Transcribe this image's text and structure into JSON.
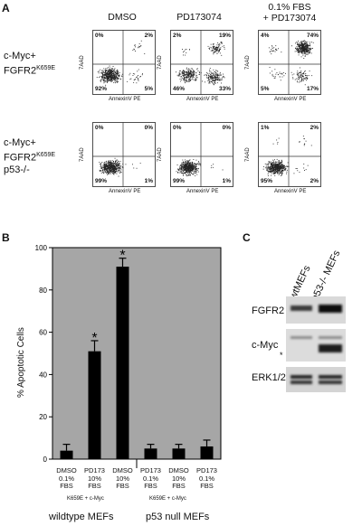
{
  "panels": {
    "a": "A",
    "b": "B",
    "c": "C"
  },
  "panel_a": {
    "columns": [
      "DMSO",
      "PD173074",
      "0.1% FBS",
      "+ PD173074"
    ],
    "rows": [
      {
        "label_line1": "c-Myc+",
        "label_line2": "FGFR2",
        "label_sup": "K659E",
        "label_line3": ""
      },
      {
        "label_line1": "c-Myc+",
        "label_line2": "FGFR2",
        "label_sup": "K659E",
        "label_line3": "p53-/-"
      }
    ],
    "y_axis_label": "7AAD",
    "x_axis_label": "AnnexinV PE",
    "plots": [
      {
        "tl": "0%",
        "tr": "2%",
        "bl": "92%",
        "br": "5%"
      },
      {
        "tl": "2%",
        "tr": "19%",
        "bl": "46%",
        "br": "33%"
      },
      {
        "tl": "4%",
        "tr": "74%",
        "bl": "5%",
        "br": "17%"
      },
      {
        "tl": "0%",
        "tr": "0%",
        "bl": "99%",
        "br": "1%"
      },
      {
        "tl": "0%",
        "tr": "0%",
        "bl": "99%",
        "br": "1%"
      },
      {
        "tl": "1%",
        "tr": "2%",
        "bl": "95%",
        "br": "2%"
      }
    ]
  },
  "chart_data": {
    "type": "bar",
    "ylabel": "% Apoptotic Cells",
    "ylim": [
      0,
      100
    ],
    "yticks": [
      "0",
      "20",
      "40",
      "60",
      "80",
      "100"
    ],
    "categories": [
      {
        "l1": "DMSO",
        "l2": "0.1%",
        "l3": "FBS"
      },
      {
        "l1": "PD173",
        "l2": "10%",
        "l3": "FBS"
      },
      {
        "l1": "DMSO",
        "l2": "10%",
        "l3": "FBS"
      },
      {
        "l1": "PD173",
        "l2": "0.1%",
        "l3": "FBS"
      },
      {
        "l1": "DMSO",
        "l2": "10%",
        "l3": "FBS"
      },
      {
        "l1": "PD173",
        "l2": "0.1%",
        "l3": "FBS"
      }
    ],
    "values": [
      4,
      51,
      91,
      5,
      5,
      6
    ],
    "errors": [
      3,
      5,
      4,
      2,
      2,
      3
    ],
    "significance": [
      "",
      "*",
      "*",
      "",
      "",
      ""
    ],
    "genotype_labels": [
      "K659E + c-Myc",
      "K659E + c-Myc"
    ],
    "group_labels": [
      "wildtype MEFs",
      "p53 null MEFs"
    ],
    "grid": false,
    "background": "#a6a6a6"
  },
  "panel_c": {
    "lanes": [
      "wtMEFs",
      "p53-/- MEFs"
    ],
    "bands": [
      "FGFR2",
      "c-Myc",
      "ERK1/2"
    ],
    "nonspecific_mark": "*"
  }
}
